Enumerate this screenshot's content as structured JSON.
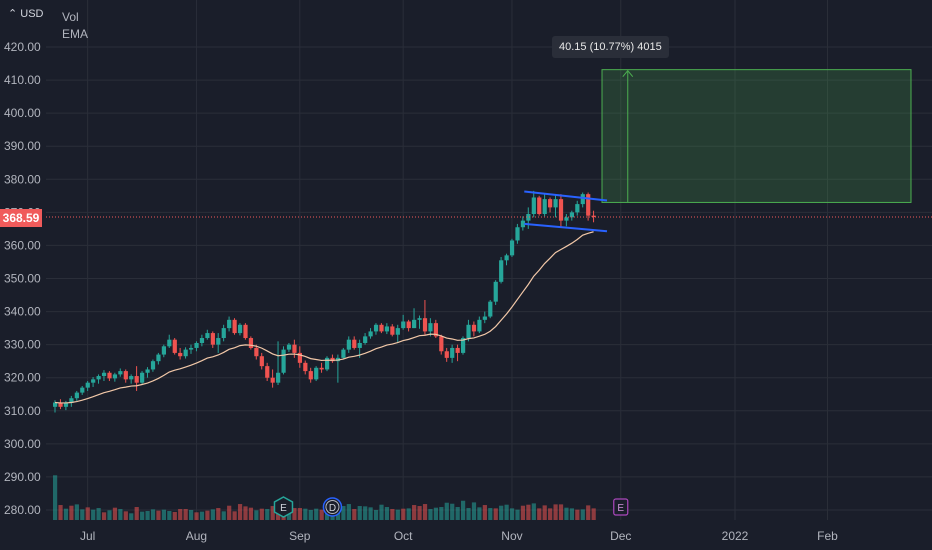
{
  "currency_button": "USD",
  "legend": {
    "vol": "Vol",
    "ema": "EMA"
  },
  "last_price": "368.59",
  "measure_label": "40.15 (10.77%) 4015",
  "event_markers": [
    {
      "label": "E",
      "kind": "earnings",
      "date_index": 42
    },
    {
      "label": "D",
      "kind": "dividend",
      "date_index": 51
    },
    {
      "label": "E",
      "kind": "future-earnings",
      "date_index": 104
    }
  ],
  "colors": {
    "up": "#26a69a",
    "down": "#ef5350",
    "background": "#1a1e2a",
    "grid": "#2a2e39",
    "ema": "#f2c8a8",
    "projection": "#4caf50",
    "flag": "#2962ff"
  },
  "chart_data": {
    "type": "candlestick",
    "ylim": [
      276,
      426
    ],
    "y_ticks": [
      280,
      290,
      300,
      310,
      320,
      330,
      340,
      350,
      360,
      370,
      380,
      390,
      400,
      410,
      420
    ],
    "y_tick_labels": [
      "280.00",
      "290.00",
      "300.00",
      "310.00",
      "320.00",
      "330.00",
      "340.00",
      "350.00",
      "360.00",
      "370.00",
      "380.00",
      "390.00",
      "400.00",
      "410.00",
      "420.00"
    ],
    "x_tick_labels": [
      "Jul",
      "Aug",
      "Sep",
      "Oct",
      "Nov",
      "Dec",
      "2022",
      "Feb"
    ],
    "x_tick_indices": [
      6,
      26,
      45,
      64,
      84,
      104,
      125,
      142
    ],
    "x_range": [
      -3,
      150
    ],
    "volume_area": {
      "bottom_y": 276,
      "top_y": 312
    },
    "candles": [
      [
        311.2,
        313.2,
        309.5,
        312.5
      ],
      [
        312.5,
        313.5,
        310.5,
        311.2
      ],
      [
        311.2,
        313.0,
        310.2,
        312.4
      ],
      [
        312.4,
        314.5,
        311.2,
        313.8
      ],
      [
        313.8,
        316.0,
        313.0,
        315.5
      ],
      [
        315.5,
        317.5,
        314.8,
        317.0
      ],
      [
        317.0,
        319.0,
        316.0,
        318.5
      ],
      [
        318.5,
        320.2,
        317.2,
        319.5
      ],
      [
        319.5,
        321.0,
        318.2,
        320.5
      ],
      [
        320.5,
        322.3,
        319.0,
        321.5
      ],
      [
        321.5,
        322.0,
        319.0,
        319.8
      ],
      [
        319.8,
        321.5,
        318.8,
        321.0
      ],
      [
        321.0,
        322.8,
        320.3,
        322.0
      ],
      [
        322.0,
        322.5,
        318.5,
        319.5
      ],
      [
        319.5,
        321.0,
        318.2,
        320.5
      ],
      [
        320.5,
        323.5,
        316.0,
        318.5
      ],
      [
        318.5,
        322.0,
        317.8,
        321.5
      ],
      [
        321.5,
        323.2,
        320.0,
        322.5
      ],
      [
        322.5,
        325.5,
        321.8,
        325.0
      ],
      [
        325.0,
        327.5,
        324.0,
        327.0
      ],
      [
        327.0,
        330.0,
        326.2,
        329.5
      ],
      [
        329.5,
        333.0,
        329.0,
        331.5
      ],
      [
        331.5,
        332.0,
        327.0,
        327.5
      ],
      [
        327.5,
        329.0,
        325.5,
        326.5
      ],
      [
        326.5,
        329.2,
        325.8,
        328.5
      ],
      [
        328.5,
        330.0,
        327.2,
        329.0
      ],
      [
        329.0,
        331.0,
        328.0,
        330.5
      ],
      [
        330.5,
        333.0,
        329.5,
        332.0
      ],
      [
        332.0,
        334.5,
        331.5,
        333.5
      ],
      [
        333.5,
        334.0,
        329.0,
        330.0
      ],
      [
        330.0,
        333.5,
        327.5,
        332.0
      ],
      [
        332.0,
        336.0,
        331.0,
        335.0
      ],
      [
        335.0,
        338.5,
        334.0,
        337.5
      ],
      [
        337.5,
        338.0,
        333.0,
        333.5
      ],
      [
        333.5,
        336.5,
        332.8,
        336.0
      ],
      [
        336.0,
        336.5,
        331.5,
        332.0
      ],
      [
        332.0,
        332.5,
        328.5,
        329.0
      ],
      [
        329.0,
        330.0,
        325.5,
        326.5
      ],
      [
        326.5,
        327.5,
        322.5,
        323.5
      ],
      [
        323.5,
        324.5,
        319.0,
        320.0
      ],
      [
        320.0,
        322.5,
        317.0,
        318.5
      ],
      [
        318.5,
        331.0,
        317.8,
        321.5
      ],
      [
        321.5,
        329.5,
        321.0,
        328.5
      ],
      [
        328.5,
        330.5,
        327.8,
        330.0
      ],
      [
        330.0,
        331.5,
        326.0,
        327.5
      ],
      [
        327.5,
        329.5,
        323.0,
        324.5
      ],
      [
        324.5,
        325.2,
        321.0,
        322.0
      ],
      [
        322.0,
        323.0,
        318.5,
        319.5
      ],
      [
        319.5,
        323.5,
        319.0,
        323.0
      ],
      [
        323.0,
        324.5,
        321.5,
        322.5
      ],
      [
        322.5,
        326.5,
        322.0,
        326.0
      ],
      [
        326.0,
        327.0,
        324.5,
        325.0
      ],
      [
        325.0,
        327.0,
        318.5,
        326.0
      ],
      [
        326.0,
        329.0,
        325.5,
        328.5
      ],
      [
        328.5,
        332.5,
        327.5,
        331.5
      ],
      [
        331.5,
        332.5,
        328.5,
        329.0
      ],
      [
        329.0,
        331.5,
        326.0,
        330.5
      ],
      [
        330.5,
        333.5,
        330.0,
        332.5
      ],
      [
        332.5,
        335.0,
        331.8,
        334.0
      ],
      [
        334.0,
        336.5,
        333.0,
        336.0
      ],
      [
        336.0,
        336.5,
        333.5,
        334.0
      ],
      [
        334.0,
        336.5,
        333.2,
        335.5
      ],
      [
        335.5,
        336.2,
        332.5,
        333.0
      ],
      [
        333.0,
        336.0,
        330.5,
        335.0
      ],
      [
        335.0,
        339.0,
        334.5,
        337.0
      ],
      [
        337.0,
        337.5,
        334.0,
        335.0
      ],
      [
        335.0,
        341.0,
        335.0,
        337.5
      ],
      [
        337.5,
        338.8,
        334.8,
        338.0
      ],
      [
        338.0,
        343.5,
        333.0,
        334.0
      ],
      [
        334.0,
        338.0,
        332.5,
        336.5
      ],
      [
        336.5,
        337.5,
        332.0,
        332.5
      ],
      [
        332.5,
        333.0,
        327.0,
        328.0
      ],
      [
        328.0,
        329.0,
        324.8,
        326.0
      ],
      [
        326.0,
        330.0,
        324.5,
        329.0
      ],
      [
        329.0,
        330.0,
        325.0,
        327.5
      ],
      [
        327.5,
        332.5,
        327.0,
        332.0
      ],
      [
        332.0,
        337.5,
        331.0,
        336.0
      ],
      [
        336.0,
        337.0,
        332.5,
        334.0
      ],
      [
        334.0,
        338.5,
        333.5,
        337.5
      ],
      [
        337.5,
        340.0,
        336.5,
        338.5
      ],
      [
        338.5,
        343.5,
        338.0,
        343.0
      ],
      [
        343.0,
        349.5,
        342.0,
        349.0
      ],
      [
        349.0,
        356.5,
        348.5,
        355.5
      ],
      [
        355.5,
        357.5,
        354.0,
        357.0
      ],
      [
        357.0,
        362.0,
        356.5,
        361.5
      ],
      [
        361.5,
        366.5,
        360.5,
        365.5
      ],
      [
        365.5,
        368.8,
        364.5,
        367.5
      ],
      [
        367.5,
        371.5,
        365.0,
        369.5
      ],
      [
        369.5,
        376.5,
        368.5,
        374.5
      ],
      [
        374.5,
        375.0,
        369.0,
        369.5
      ],
      [
        369.5,
        375.5,
        368.8,
        374.0
      ],
      [
        374.0,
        374.5,
        370.0,
        371.5
      ],
      [
        371.5,
        375.5,
        368.5,
        374.0
      ],
      [
        374.0,
        375.5,
        365.5,
        367.5
      ],
      [
        367.5,
        369.5,
        365.8,
        368.5
      ],
      [
        368.5,
        370.5,
        367.5,
        370.0
      ],
      [
        370.0,
        373.5,
        369.0,
        372.5
      ],
      [
        372.5,
        376.0,
        371.5,
        375.5
      ],
      [
        375.5,
        376.0,
        367.5,
        369.0
      ],
      [
        369.0,
        370.5,
        367.0,
        368.59
      ]
    ],
    "volume": [
      [
        290.5,
        1
      ],
      [
        281.5,
        0
      ],
      [
        280.4,
        1
      ],
      [
        281.3,
        0
      ],
      [
        281.7,
        1
      ],
      [
        280.2,
        1
      ],
      [
        280.8,
        0
      ],
      [
        280.1,
        1
      ],
      [
        280.6,
        1
      ],
      [
        279.3,
        0
      ],
      [
        279.9,
        1
      ],
      [
        280.7,
        0
      ],
      [
        280.3,
        1
      ],
      [
        279.6,
        0
      ],
      [
        279.0,
        1
      ],
      [
        280.9,
        0
      ],
      [
        279.5,
        1
      ],
      [
        279.7,
        1
      ],
      [
        280.2,
        1
      ],
      [
        279.8,
        0
      ],
      [
        280.1,
        1
      ],
      [
        279.7,
        1
      ],
      [
        279.4,
        0
      ],
      [
        280.3,
        0
      ],
      [
        280.3,
        0
      ],
      [
        280.0,
        1
      ],
      [
        279.3,
        0
      ],
      [
        279.5,
        1
      ],
      [
        279.8,
        0
      ],
      [
        280.2,
        1
      ],
      [
        280.6,
        0
      ],
      [
        279.6,
        1
      ],
      [
        281.3,
        0
      ],
      [
        279.6,
        0
      ],
      [
        281.8,
        0
      ],
      [
        281.1,
        0
      ],
      [
        280.7,
        0
      ],
      [
        279.9,
        1
      ],
      [
        280.4,
        0
      ],
      [
        280.3,
        1
      ],
      [
        281.2,
        0
      ],
      [
        281.4,
        0
      ],
      [
        281.5,
        0
      ],
      [
        281.1,
        1
      ],
      [
        280.6,
        0
      ],
      [
        280.6,
        0
      ],
      [
        280.4,
        1
      ],
      [
        280.0,
        1
      ],
      [
        280.4,
        1
      ],
      [
        280.1,
        0
      ],
      [
        280.3,
        1
      ],
      [
        280.8,
        1
      ],
      [
        281.2,
        1
      ],
      [
        281.2,
        1
      ],
      [
        281.8,
        1
      ],
      [
        280.3,
        0
      ],
      [
        281.2,
        1
      ],
      [
        281.1,
        1
      ],
      [
        280.8,
        1
      ],
      [
        280.0,
        1
      ],
      [
        281.6,
        1
      ],
      [
        280.9,
        1
      ],
      [
        280.3,
        0
      ],
      [
        280.1,
        1
      ],
      [
        280.4,
        0
      ],
      [
        280.5,
        1
      ],
      [
        281.5,
        0
      ],
      [
        281.2,
        0
      ],
      [
        281.8,
        0
      ],
      [
        280.3,
        1
      ],
      [
        280.7,
        1
      ],
      [
        280.9,
        1
      ],
      [
        282.2,
        1
      ],
      [
        281.9,
        1
      ],
      [
        280.9,
        1
      ],
      [
        282.8,
        1
      ],
      [
        280.6,
        1
      ],
      [
        282.3,
        1
      ],
      [
        280.8,
        1
      ],
      [
        281.5,
        0
      ],
      [
        280.6,
        1
      ],
      [
        280.5,
        0
      ],
      [
        281.3,
        1
      ],
      [
        281.6,
        1
      ],
      [
        280.5,
        1
      ],
      [
        280.1,
        1
      ],
      [
        281.3,
        0
      ],
      [
        281.6,
        0
      ],
      [
        282.0,
        1
      ],
      [
        280.5,
        0
      ],
      [
        281.4,
        0
      ],
      [
        280.5,
        0
      ],
      [
        281.7,
        0
      ],
      [
        281.7,
        0
      ],
      [
        280.7,
        1
      ],
      [
        280.5,
        1
      ],
      [
        280.1,
        0
      ],
      [
        280.2,
        1
      ],
      [
        281.4,
        0
      ],
      [
        280.5,
        0
      ]
    ],
    "ema_period_series": "EMA",
    "flag": {
      "upper": [
        [
          87,
          376.3
        ],
        [
          100,
          373.6
        ]
      ],
      "lower": [
        [
          87,
          366.5
        ],
        [
          100,
          364.3
        ]
      ]
    },
    "projection": {
      "x_start": 100,
      "x_end": 150,
      "y_low": 373.0,
      "y_high": 413.15,
      "arrow_x": 104
    },
    "last_price_line": 368.59
  }
}
